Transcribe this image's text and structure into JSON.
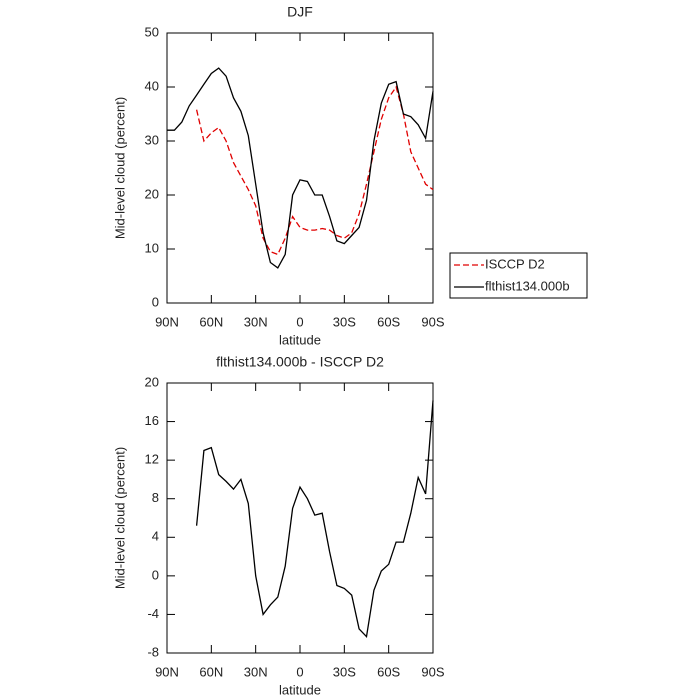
{
  "chart_data": [
    {
      "type": "line",
      "title": "DJF",
      "xlabel": "latitude",
      "ylabel": "Mid-level cloud (percent)",
      "x": [
        90,
        85,
        80,
        75,
        70,
        65,
        60,
        55,
        50,
        45,
        40,
        35,
        30,
        25,
        20,
        15,
        10,
        5,
        0,
        -5,
        -10,
        -15,
        -20,
        -25,
        -30,
        -35,
        -40,
        -45,
        -50,
        -55,
        -60,
        -65,
        -70,
        -75,
        -80,
        -85,
        -90
      ],
      "xlim": [
        90,
        -90
      ],
      "xticks": [
        {
          "value": 90,
          "label": "90N"
        },
        {
          "value": 60,
          "label": "60N"
        },
        {
          "value": 30,
          "label": "30N"
        },
        0,
        {
          "value": -30,
          "label": "30S"
        },
        {
          "value": -60,
          "label": "60S"
        },
        {
          "value": -90,
          "label": "90S"
        }
      ],
      "ylim": [
        0,
        50
      ],
      "yticks": [
        0,
        10,
        20,
        30,
        40,
        50
      ],
      "legend": "right",
      "series": [
        {
          "name": "ISCCP D2",
          "color": "#e00000",
          "dash": true,
          "values": [
            null,
            null,
            null,
            null,
            35.8,
            30,
            31.5,
            32.5,
            30,
            26,
            23.5,
            21,
            18,
            12,
            9.5,
            9,
            12,
            16,
            14,
            13.5,
            13.5,
            13.8,
            13.5,
            12.5,
            12,
            13,
            16.5,
            22,
            28,
            34,
            38,
            40,
            35,
            28,
            25,
            22,
            21
          ]
        },
        {
          "name": "flthist134.000b",
          "color": "#000000",
          "dash": false,
          "values": [
            32,
            32,
            33.5,
            36.5,
            38.5,
            40.5,
            42.5,
            43.5,
            42,
            38,
            35.5,
            31,
            22,
            13,
            7.5,
            6.5,
            9,
            20,
            22.8,
            22.5,
            20,
            20,
            16,
            11.5,
            11,
            12.5,
            14,
            19,
            30,
            37,
            40.5,
            41,
            35,
            34.5,
            33,
            30.5,
            39.2
          ]
        }
      ]
    },
    {
      "type": "line",
      "title": "flthist134.000b - ISCCP D2",
      "xlabel": "latitude",
      "ylabel": "Mid-level cloud (percent)",
      "x": [
        90,
        85,
        80,
        75,
        70,
        65,
        60,
        55,
        50,
        45,
        40,
        35,
        30,
        25,
        20,
        15,
        10,
        5,
        0,
        -5,
        -10,
        -15,
        -20,
        -25,
        -30,
        -35,
        -40,
        -45,
        -50,
        -55,
        -60,
        -65,
        -70,
        -75,
        -80,
        -85,
        -90
      ],
      "xlim": [
        90,
        -90
      ],
      "xticks": [
        {
          "value": 90,
          "label": "90N"
        },
        {
          "value": 60,
          "label": "60N"
        },
        {
          "value": 30,
          "label": "30N"
        },
        0,
        {
          "value": -30,
          "label": "30S"
        },
        {
          "value": -60,
          "label": "60S"
        },
        {
          "value": -90,
          "label": "90S"
        }
      ],
      "ylim": [
        -8,
        20
      ],
      "yticks": [
        -8,
        -4,
        0,
        4,
        8,
        12,
        16,
        20
      ],
      "series": [
        {
          "color": "#000000",
          "dash": false,
          "values": [
            null,
            null,
            null,
            null,
            5.2,
            13,
            13.3,
            10.5,
            9.8,
            9,
            10,
            7.5,
            0,
            -4,
            -3,
            -2.2,
            1,
            7,
            9.2,
            8,
            6.3,
            6.5,
            2.5,
            -1,
            -1.3,
            -2,
            -5.5,
            -6.3,
            -1.5,
            0.5,
            1.2,
            3.5,
            3.5,
            6.5,
            10.2,
            8.5,
            18.2
          ]
        }
      ]
    }
  ]
}
